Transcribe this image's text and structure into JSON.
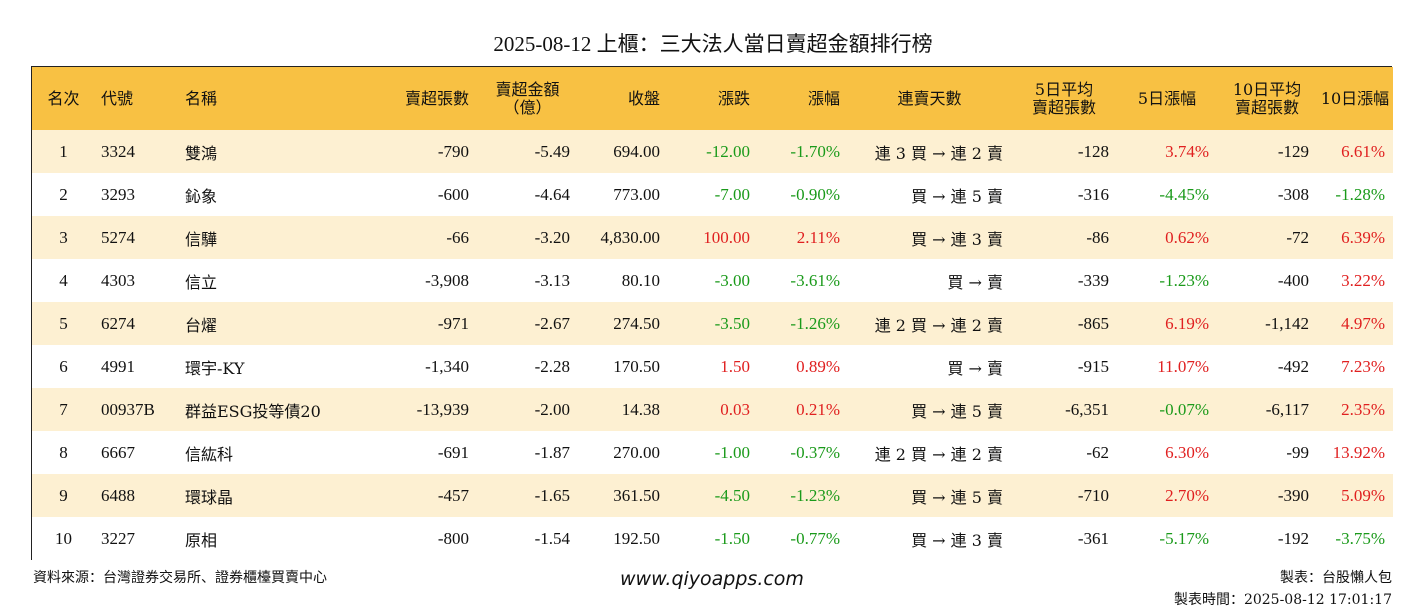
{
  "title": "2025-08-12 上櫃：三大法人當日賣超金額排行榜",
  "headers": {
    "rank": "名次",
    "code": "代號",
    "name": "名稱",
    "sell_shares": "賣超張數",
    "sell_amount_l1": "賣超金額",
    "sell_amount_l2": "（億）",
    "close": "收盤",
    "change": "漲跌",
    "change_pct": "漲幅",
    "streak": "連賣天數",
    "avg5_l1": "5日平均",
    "avg5_l2": "賣超張數",
    "pct5": "5日漲幅",
    "avg10_l1": "10日平均",
    "avg10_l2": "賣超張數",
    "pct10": "10日漲幅"
  },
  "rows": [
    {
      "rank": "1",
      "code": "3324",
      "name": "雙鴻",
      "sell_shares": "-790",
      "sell_amount": "-5.49",
      "close": "694.00",
      "change": "-12.00",
      "change_pct": "-1.70%",
      "streak": "連 3 買 → 連 2 賣",
      "avg5": "-128",
      "pct5": "3.74%",
      "avg10": "-129",
      "pct10": "6.61%"
    },
    {
      "rank": "2",
      "code": "3293",
      "name": "鈊象",
      "sell_shares": "-600",
      "sell_amount": "-4.64",
      "close": "773.00",
      "change": "-7.00",
      "change_pct": "-0.90%",
      "streak": "買 → 連 5 賣",
      "avg5": "-316",
      "pct5": "-4.45%",
      "avg10": "-308",
      "pct10": "-1.28%"
    },
    {
      "rank": "3",
      "code": "5274",
      "name": "信驊",
      "sell_shares": "-66",
      "sell_amount": "-3.20",
      "close": "4,830.00",
      "change": "100.00",
      "change_pct": "2.11%",
      "streak": "買 → 連 3 賣",
      "avg5": "-86",
      "pct5": "0.62%",
      "avg10": "-72",
      "pct10": "6.39%"
    },
    {
      "rank": "4",
      "code": "4303",
      "name": "信立",
      "sell_shares": "-3,908",
      "sell_amount": "-3.13",
      "close": "80.10",
      "change": "-3.00",
      "change_pct": "-3.61%",
      "streak": "買 → 賣",
      "avg5": "-339",
      "pct5": "-1.23%",
      "avg10": "-400",
      "pct10": "3.22%"
    },
    {
      "rank": "5",
      "code": "6274",
      "name": "台燿",
      "sell_shares": "-971",
      "sell_amount": "-2.67",
      "close": "274.50",
      "change": "-3.50",
      "change_pct": "-1.26%",
      "streak": "連 2 買 → 連 2 賣",
      "avg5": "-865",
      "pct5": "6.19%",
      "avg10": "-1,142",
      "pct10": "4.97%"
    },
    {
      "rank": "6",
      "code": "4991",
      "name": "環宇-KY",
      "sell_shares": "-1,340",
      "sell_amount": "-2.28",
      "close": "170.50",
      "change": "1.50",
      "change_pct": "0.89%",
      "streak": "買 → 賣",
      "avg5": "-915",
      "pct5": "11.07%",
      "avg10": "-492",
      "pct10": "7.23%"
    },
    {
      "rank": "7",
      "code": "00937B",
      "name": "群益ESG投等債20",
      "sell_shares": "-13,939",
      "sell_amount": "-2.00",
      "close": "14.38",
      "change": "0.03",
      "change_pct": "0.21%",
      "streak": "買 → 連 5 賣",
      "avg5": "-6,351",
      "pct5": "-0.07%",
      "avg10": "-6,117",
      "pct10": "2.35%"
    },
    {
      "rank": "8",
      "code": "6667",
      "name": "信紘科",
      "sell_shares": "-691",
      "sell_amount": "-1.87",
      "close": "270.00",
      "change": "-1.00",
      "change_pct": "-0.37%",
      "streak": "連 2 買 → 連 2 賣",
      "avg5": "-62",
      "pct5": "6.30%",
      "avg10": "-99",
      "pct10": "13.92%"
    },
    {
      "rank": "9",
      "code": "6488",
      "name": "環球晶",
      "sell_shares": "-457",
      "sell_amount": "-1.65",
      "close": "361.50",
      "change": "-4.50",
      "change_pct": "-1.23%",
      "streak": "買 → 連 5 賣",
      "avg5": "-710",
      "pct5": "2.70%",
      "avg10": "-390",
      "pct10": "5.09%"
    },
    {
      "rank": "10",
      "code": "3227",
      "name": "原相",
      "sell_shares": "-800",
      "sell_amount": "-1.54",
      "close": "192.50",
      "change": "-1.50",
      "change_pct": "-0.77%",
      "streak": "買 → 連 3 賣",
      "avg5": "-361",
      "pct5": "-5.17%",
      "avg10": "-192",
      "pct10": "-3.75%"
    }
  ],
  "colors": {
    "header_bg": "#f8c143",
    "row_alt_bg": "#fdf0d2",
    "up": "#e02020",
    "down": "#1a9a1a"
  },
  "footer": {
    "source": "資料來源：台灣證券交易所、證券櫃檯買賣中心",
    "website": "www.qiyoapps.com",
    "maker": "製表：台股懶人包",
    "made_time": "製表時間：2025-08-12 17:01:17"
  }
}
